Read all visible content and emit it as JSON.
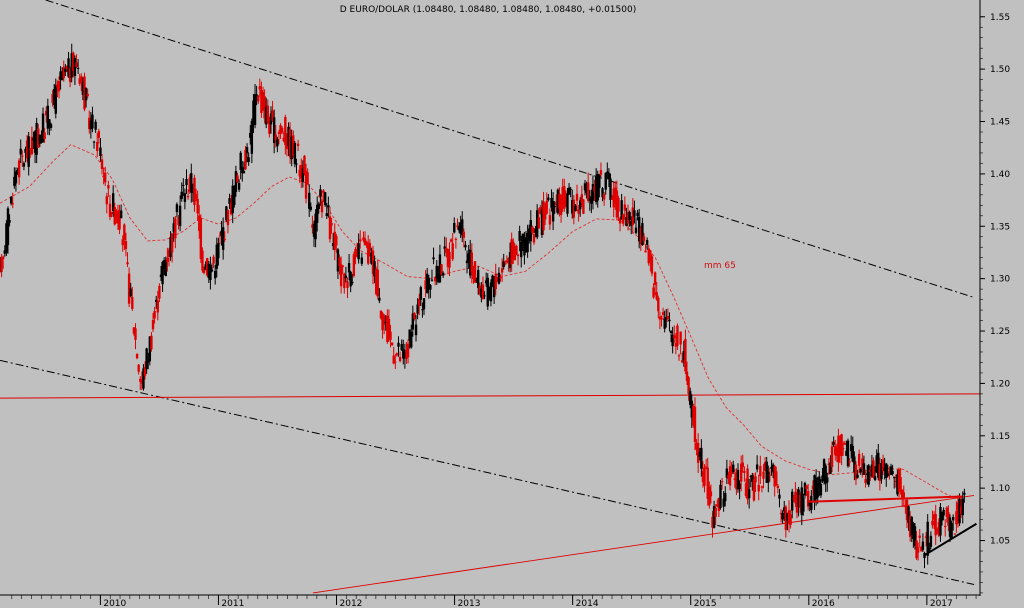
{
  "chart_data": {
    "type": "candlestick",
    "title": "D EURO/DOLAR (1.08480, 1.08480, 1.08480, 1.08480, +0.01500)",
    "xlabel": "",
    "ylabel": "",
    "x_ticks": [
      "2010",
      "2011",
      "2012",
      "2013",
      "2014",
      "2015",
      "2016",
      "2017"
    ],
    "y_ticks": [
      "1.55",
      "1.50",
      "1.45",
      "1.40",
      "1.35",
      "1.30",
      "1.25",
      "1.20",
      "1.15",
      "1.10",
      "1.05"
    ],
    "xlim": [
      2009.15,
      2017.45
    ],
    "ylim": [
      0.998,
      1.566
    ],
    "grid": false,
    "legend": "none",
    "colors": {
      "background": "#c0c0c0",
      "up_candle": "#000000",
      "down_candle": "#e00000",
      "moving_average": "#e03030",
      "channel_lines": "#000000",
      "support_resistance": "#e00000",
      "trendline_black": "#000000"
    },
    "moving_average": {
      "label": "mm 65",
      "points": [
        [
          2009.15,
          1.372
        ],
        [
          2009.4,
          1.388
        ],
        [
          2009.6,
          1.412
        ],
        [
          2009.75,
          1.428
        ],
        [
          2009.95,
          1.418
        ],
        [
          2010.1,
          1.395
        ],
        [
          2010.25,
          1.358
        ],
        [
          2010.4,
          1.336
        ],
        [
          2010.55,
          1.337
        ],
        [
          2010.7,
          1.345
        ],
        [
          2010.85,
          1.358
        ],
        [
          2011.0,
          1.352
        ],
        [
          2011.15,
          1.358
        ],
        [
          2011.3,
          1.372
        ],
        [
          2011.45,
          1.388
        ],
        [
          2011.6,
          1.397
        ],
        [
          2011.75,
          1.391
        ],
        [
          2011.9,
          1.372
        ],
        [
          2012.05,
          1.345
        ],
        [
          2012.2,
          1.327
        ],
        [
          2012.4,
          1.315
        ],
        [
          2012.6,
          1.302
        ],
        [
          2012.8,
          1.3
        ],
        [
          2013.0,
          1.307
        ],
        [
          2013.2,
          1.312
        ],
        [
          2013.4,
          1.302
        ],
        [
          2013.6,
          1.307
        ],
        [
          2013.8,
          1.325
        ],
        [
          2014.0,
          1.345
        ],
        [
          2014.2,
          1.357
        ],
        [
          2014.4,
          1.356
        ],
        [
          2014.55,
          1.34
        ],
        [
          2014.7,
          1.32
        ],
        [
          2014.85,
          1.284
        ],
        [
          2015.0,
          1.245
        ],
        [
          2015.15,
          1.205
        ],
        [
          2015.3,
          1.177
        ],
        [
          2015.45,
          1.16
        ],
        [
          2015.6,
          1.14
        ],
        [
          2015.8,
          1.126
        ],
        [
          2016.0,
          1.118
        ],
        [
          2016.2,
          1.113
        ],
        [
          2016.4,
          1.115
        ],
        [
          2016.6,
          1.119
        ],
        [
          2016.8,
          1.118
        ],
        [
          2017.0,
          1.105
        ],
        [
          2017.15,
          1.095
        ],
        [
          2017.25,
          1.09
        ]
      ]
    },
    "price_path": [
      [
        2009.15,
        1.298
      ],
      [
        2009.3,
        1.405
      ],
      [
        2009.42,
        1.425
      ],
      [
        2009.55,
        1.448
      ],
      [
        2009.68,
        1.488
      ],
      [
        2009.82,
        1.508
      ],
      [
        2009.92,
        1.452
      ],
      [
        2010.0,
        1.43
      ],
      [
        2010.08,
        1.375
      ],
      [
        2010.18,
        1.36
      ],
      [
        2010.28,
        1.27
      ],
      [
        2010.36,
        1.198
      ],
      [
        2010.46,
        1.255
      ],
      [
        2010.55,
        1.315
      ],
      [
        2010.64,
        1.345
      ],
      [
        2010.72,
        1.388
      ],
      [
        2010.8,
        1.39
      ],
      [
        2010.88,
        1.318
      ],
      [
        2010.96,
        1.31
      ],
      [
        2011.05,
        1.345
      ],
      [
        2011.18,
        1.4
      ],
      [
        2011.28,
        1.43
      ],
      [
        2011.34,
        1.485
      ],
      [
        2011.4,
        1.462
      ],
      [
        2011.48,
        1.44
      ],
      [
        2011.57,
        1.44
      ],
      [
        2011.66,
        1.42
      ],
      [
        2011.74,
        1.4
      ],
      [
        2011.82,
        1.345
      ],
      [
        2011.9,
        1.382
      ],
      [
        2011.98,
        1.335
      ],
      [
        2012.06,
        1.298
      ],
      [
        2012.14,
        1.31
      ],
      [
        2012.24,
        1.332
      ],
      [
        2012.33,
        1.312
      ],
      [
        2012.42,
        1.255
      ],
      [
        2012.52,
        1.228
      ],
      [
        2012.6,
        1.225
      ],
      [
        2012.68,
        1.262
      ],
      [
        2012.78,
        1.298
      ],
      [
        2012.88,
        1.312
      ],
      [
        2012.98,
        1.325
      ],
      [
        2013.05,
        1.358
      ],
      [
        2013.12,
        1.32
      ],
      [
        2013.2,
        1.3
      ],
      [
        2013.28,
        1.285
      ],
      [
        2013.36,
        1.3
      ],
      [
        2013.46,
        1.322
      ],
      [
        2013.56,
        1.332
      ],
      [
        2013.66,
        1.342
      ],
      [
        2013.76,
        1.36
      ],
      [
        2013.86,
        1.37
      ],
      [
        2013.96,
        1.375
      ],
      [
        2014.06,
        1.372
      ],
      [
        2014.16,
        1.38
      ],
      [
        2014.24,
        1.392
      ],
      [
        2014.32,
        1.388
      ],
      [
        2014.42,
        1.365
      ],
      [
        2014.52,
        1.358
      ],
      [
        2014.6,
        1.34
      ],
      [
        2014.66,
        1.318
      ],
      [
        2014.72,
        1.285
      ],
      [
        2014.8,
        1.258
      ],
      [
        2014.88,
        1.245
      ],
      [
        2014.96,
        1.228
      ],
      [
        2015.0,
        1.188
      ],
      [
        2015.04,
        1.162
      ],
      [
        2015.09,
        1.13
      ],
      [
        2015.14,
        1.108
      ],
      [
        2015.2,
        1.072
      ],
      [
        2015.27,
        1.095
      ],
      [
        2015.36,
        1.115
      ],
      [
        2015.44,
        1.11
      ],
      [
        2015.52,
        1.098
      ],
      [
        2015.6,
        1.112
      ],
      [
        2015.68,
        1.12
      ],
      [
        2015.76,
        1.088
      ],
      [
        2015.82,
        1.07
      ],
      [
        2015.88,
        1.085
      ],
      [
        2015.96,
        1.09
      ],
      [
        2016.04,
        1.092
      ],
      [
        2016.12,
        1.112
      ],
      [
        2016.2,
        1.128
      ],
      [
        2016.28,
        1.14
      ],
      [
        2016.36,
        1.132
      ],
      [
        2016.44,
        1.118
      ],
      [
        2016.52,
        1.115
      ],
      [
        2016.6,
        1.122
      ],
      [
        2016.68,
        1.115
      ],
      [
        2016.76,
        1.105
      ],
      [
        2016.82,
        1.088
      ],
      [
        2016.86,
        1.072
      ],
      [
        2016.92,
        1.048
      ],
      [
        2016.98,
        1.042
      ],
      [
        2017.04,
        1.06
      ],
      [
        2017.1,
        1.065
      ],
      [
        2017.16,
        1.072
      ],
      [
        2017.22,
        1.065
      ],
      [
        2017.28,
        1.078
      ],
      [
        2017.32,
        1.085
      ]
    ],
    "lines": {
      "upper_channel": [
        [
          2009.15,
          1.58
        ],
        [
          2017.4,
          1.282
        ]
      ],
      "lower_channel": [
        [
          2009.15,
          1.222
        ],
        [
          2017.4,
          1.008
        ]
      ],
      "horizontal_resistance": [
        [
          2009.15,
          1.186
        ],
        [
          2017.45,
          1.19
        ]
      ],
      "long_rising_trend": [
        [
          2011.8,
          1.0
        ],
        [
          2017.4,
          1.093
        ]
      ],
      "short_resistance": [
        [
          2016.0,
          1.087
        ],
        [
          2017.3,
          1.092
        ]
      ],
      "short_support": [
        [
          2016.98,
          1.036
        ],
        [
          2017.42,
          1.066
        ]
      ]
    }
  }
}
